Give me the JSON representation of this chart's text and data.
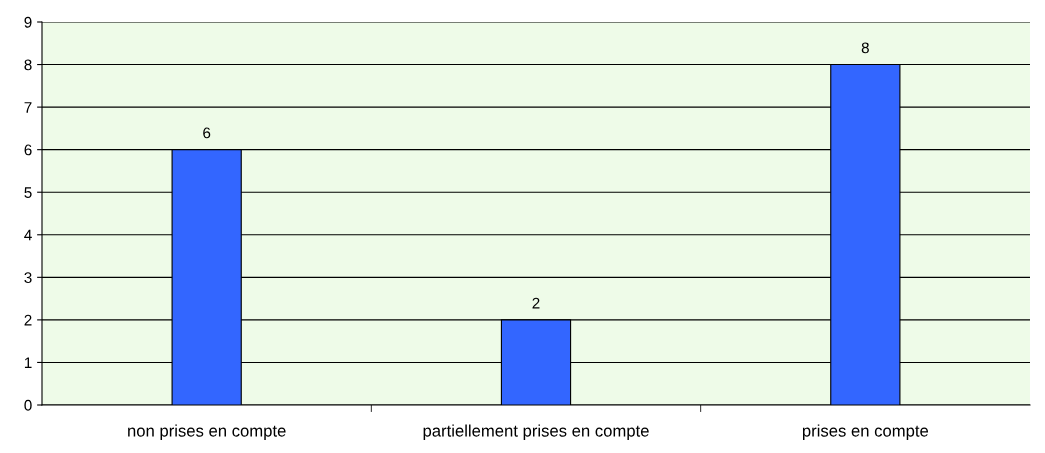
{
  "chart_data": {
    "type": "bar",
    "categories": [
      "non prises en compte",
      "partiellement prises en compte",
      "prises en compte"
    ],
    "values": [
      6,
      2,
      8
    ],
    "color": "#3366ff",
    "data_labels": true,
    "ylim": [
      0,
      9
    ],
    "yticks": [
      0,
      1,
      2,
      3,
      4,
      5,
      6,
      7,
      8,
      9
    ],
    "grid": "y"
  }
}
